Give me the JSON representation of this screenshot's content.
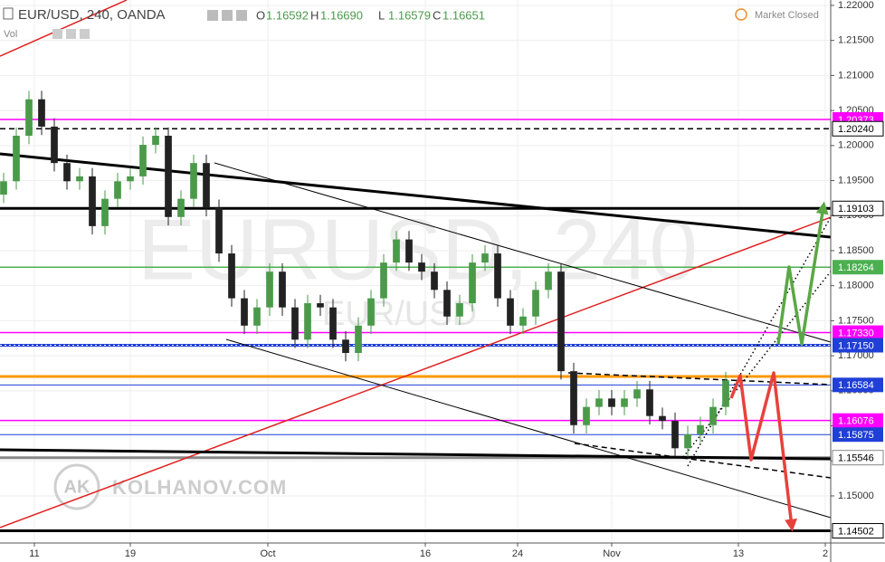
{
  "header": {
    "symbol": "EUR/USD, 240, OANDA",
    "indicator": "Vol",
    "status": "Market Closed",
    "ohlc": [
      {
        "label": "O",
        "value": "1.16592"
      },
      {
        "label": "H",
        "value": "1.16690"
      },
      {
        "label": "L",
        "value": "1.16579"
      },
      {
        "label": "C",
        "value": "1.16651"
      }
    ]
  },
  "watermark": {
    "main": "EURUSD, 240",
    "sub": "EUR/USD",
    "brand": "KOLHANOV.COM",
    "logo": "AK"
  },
  "chart_data": {
    "type": "candlestick",
    "up_color": "#4a9a4a",
    "down_color": "#222222",
    "grid": true,
    "xlim": [
      0,
      229.5
    ],
    "ylim": [
      1.14328,
      1.22077
    ],
    "xticks": [
      {
        "value": 9.5,
        "label": "11"
      },
      {
        "value": 36,
        "label": "19"
      },
      {
        "value": 74,
        "label": "Oct"
      },
      {
        "value": 117.5,
        "label": "16"
      },
      {
        "value": 143,
        "label": "24"
      },
      {
        "value": 169,
        "label": "Nov"
      },
      {
        "value": 204,
        "label": "13"
      },
      {
        "value": 228,
        "label": "2"
      }
    ],
    "yticks": [
      {
        "value": 1.22,
        "label": "1.22000"
      },
      {
        "value": 1.215,
        "label": "1.21500"
      },
      {
        "value": 1.21,
        "label": "1.21000"
      },
      {
        "value": 1.205,
        "label": "1.20500"
      },
      {
        "value": 1.2,
        "label": "1.20000"
      },
      {
        "value": 1.195,
        "label": "1.19500"
      },
      {
        "value": 1.19,
        "label": "1.19000"
      },
      {
        "value": 1.185,
        "label": "1.18500"
      },
      {
        "value": 1.18,
        "label": "1.18000"
      },
      {
        "value": 1.175,
        "label": "1.17500"
      },
      {
        "value": 1.17,
        "label": "1.17000"
      },
      {
        "value": 1.165,
        "label": "1.16500"
      },
      {
        "value": 1.16,
        "label": "1.16000"
      },
      {
        "value": 1.155,
        "label": "1.15500"
      },
      {
        "value": 1.15,
        "label": "1.15000"
      },
      {
        "value": 1.145,
        "label": "1.14500"
      }
    ],
    "candles": {
      "x": [
        1,
        4.5,
        8,
        11.5,
        15,
        18.5,
        22,
        25.5,
        29,
        32.5,
        36,
        39.5,
        43,
        46.5,
        50,
        53.5,
        57,
        60.5,
        64,
        67.5,
        71,
        74.5,
        78,
        81.5,
        85,
        88.5,
        92,
        95.5,
        99,
        102.5,
        106,
        109.5,
        113,
        116.5,
        120,
        123.5,
        127,
        130.5,
        134,
        137.5,
        141,
        144.5,
        148,
        151.5,
        155,
        158.5,
        162,
        165.5,
        169,
        172.5,
        176,
        179.5,
        183,
        186.5,
        190,
        193.5,
        197,
        200.5
      ],
      "open": [
        1.193,
        1.1949,
        1.2014,
        1.2066,
        1.2027,
        1.1975,
        1.1949,
        1.1956,
        1.1885,
        1.1924,
        1.1949,
        1.1956,
        1.2001,
        1.2014,
        1.1898,
        1.1924,
        1.1975,
        1.1911,
        1.1846,
        1.1782,
        1.1743,
        1.1769,
        1.182,
        1.1769,
        1.1723,
        1.1775,
        1.1769,
        1.1723,
        1.1704,
        1.1743,
        1.1782,
        1.1833,
        1.1866,
        1.1833,
        1.182,
        1.1794,
        1.1756,
        1.1775,
        1.1833,
        1.1846,
        1.1782,
        1.1743,
        1.1756,
        1.1794,
        1.182,
        1.1678,
        1.1601,
        1.1627,
        1.1639,
        1.1627,
        1.1639,
        1.1652,
        1.1614,
        1.1607,
        1.1568,
        1.1588,
        1.1601,
        1.1627
      ],
      "high": [
        1.1961,
        1.2026,
        1.2078,
        1.2078,
        1.2039,
        1.1987,
        1.1968,
        1.1968,
        1.1936,
        1.1961,
        1.1968,
        1.2013,
        1.2026,
        1.2026,
        1.1936,
        1.1987,
        1.1987,
        1.1923,
        1.1858,
        1.1794,
        1.1781,
        1.1832,
        1.1832,
        1.1781,
        1.1787,
        1.1787,
        1.1781,
        1.1735,
        1.1755,
        1.1794,
        1.1845,
        1.1878,
        1.1878,
        1.1845,
        1.1832,
        1.1806,
        1.1787,
        1.1845,
        1.1858,
        1.1858,
        1.1794,
        1.1768,
        1.1806,
        1.1832,
        1.1832,
        1.169,
        1.1639,
        1.1651,
        1.1651,
        1.1651,
        1.1664,
        1.1664,
        1.1626,
        1.1619,
        1.16,
        1.1613,
        1.1639,
        1.1677
      ],
      "low": [
        1.1918,
        1.1937,
        1.2002,
        1.2015,
        1.1963,
        1.1937,
        1.1937,
        1.1873,
        1.1873,
        1.1912,
        1.1937,
        1.1944,
        1.1989,
        1.1886,
        1.1886,
        1.1912,
        1.1899,
        1.1834,
        1.177,
        1.1731,
        1.1731,
        1.1757,
        1.1757,
        1.1711,
        1.1711,
        1.1757,
        1.1711,
        1.1692,
        1.1692,
        1.1731,
        1.177,
        1.1821,
        1.1821,
        1.1808,
        1.1782,
        1.1744,
        1.1744,
        1.1763,
        1.1821,
        1.177,
        1.1731,
        1.1731,
        1.1744,
        1.1782,
        1.1666,
        1.1589,
        1.1589,
        1.1615,
        1.1615,
        1.1615,
        1.1627,
        1.1602,
        1.1595,
        1.1556,
        1.1556,
        1.1576,
        1.1589,
        1.1615
      ],
      "close": [
        1.1949,
        1.2014,
        1.2066,
        1.2027,
        1.1975,
        1.1949,
        1.1956,
        1.1885,
        1.1924,
        1.1949,
        1.1956,
        1.2001,
        1.2014,
        1.1898,
        1.1924,
        1.1975,
        1.1911,
        1.1846,
        1.1782,
        1.1743,
        1.1769,
        1.182,
        1.1769,
        1.1723,
        1.1775,
        1.1769,
        1.1723,
        1.1704,
        1.1743,
        1.1782,
        1.1833,
        1.1866,
        1.1833,
        1.182,
        1.1794,
        1.1756,
        1.1775,
        1.1833,
        1.1846,
        1.1782,
        1.1743,
        1.1756,
        1.1794,
        1.182,
        1.1678,
        1.1601,
        1.1627,
        1.1639,
        1.1627,
        1.1639,
        1.1652,
        1.1614,
        1.1607,
        1.1568,
        1.1588,
        1.1601,
        1.1627,
        1.1665
      ]
    },
    "levels": [
      {
        "value": 1.20373,
        "label": "1.20373",
        "color": "#ff00ff",
        "style": "solid"
      },
      {
        "value": 1.2024,
        "label": "1.20240",
        "color": "#000000",
        "style": "dashed"
      },
      {
        "value": 1.19103,
        "label": "1.19103",
        "color": "#000000",
        "style": "thick"
      },
      {
        "value": 1.18264,
        "label": "1.18264",
        "color": "#4caf50",
        "style": "solid"
      },
      {
        "value": 1.1733,
        "label": "1.17330",
        "color": "#ff00ff",
        "style": "solid"
      },
      {
        "value": 1.1715,
        "label": "1.17150",
        "color": "#1f3fd6",
        "style": "thick"
      },
      {
        "value": 1.16705,
        "color": "#ff9800",
        "style": "thick"
      },
      {
        "value": 1.16584,
        "label": "1.16584",
        "color": "#1f3fd6",
        "style": "thin"
      },
      {
        "value": 1.16076,
        "label": "1.16076",
        "color": "#ff00ff",
        "style": "solid"
      },
      {
        "value": 1.15875,
        "label": "1.15875",
        "color": "#1f3fd6",
        "style": "thin"
      },
      {
        "value": 1.15546,
        "label": "1.15546",
        "color": "#888888",
        "style": "thick"
      },
      {
        "value": 1.14502,
        "label": "1.14502",
        "color": "#000000",
        "style": "thick"
      }
    ],
    "trendlines": [
      {
        "x": [
          0,
          229.5
        ],
        "y": [
          1.14548,
          1.18977
        ],
        "color": "#e02020",
        "style": "solid"
      },
      {
        "x": [
          0,
          35
        ],
        "y": [
          1.21276,
          1.22077
        ],
        "color": "#e02020",
        "style": "solid"
      },
      {
        "x": [
          0,
          229.5
        ],
        "y": [
          1.19881,
          1.18693
        ],
        "color": "#000000",
        "style": "thick"
      },
      {
        "x": [
          59.25,
          229.5
        ],
        "y": [
          1.19752,
          1.17195
        ],
        "color": "#000000",
        "style": "thin"
      },
      {
        "x": [
          62.5,
          229.5
        ],
        "y": [
          1.17234,
          1.1469
        ],
        "color": "#000000",
        "style": "thin"
      },
      {
        "x": [
          0,
          229.5
        ],
        "y": [
          1.15658,
          1.15529
        ],
        "color": "#000000",
        "style": "thick"
      },
      {
        "x": [
          157,
          229.5
        ],
        "y": [
          1.16756,
          1.16588
        ],
        "color": "#000000",
        "style": "dashed"
      },
      {
        "x": [
          158.75,
          229.5
        ],
        "y": [
          1.15749,
          1.15258
        ],
        "color": "#000000",
        "style": "dashed"
      },
      {
        "x": [
          190,
          229.5
        ],
        "y": [
          1.15426,
          1.18977
        ],
        "color": "#000000",
        "style": "dotted"
      },
      {
        "x": [
          188.75,
          229.5
        ],
        "y": [
          1.15555,
          1.18203
        ],
        "color": "#000000",
        "style": "dotted"
      }
    ],
    "forecasts": [
      {
        "x": [
          215,
          218,
          221.5,
          227.5
        ],
        "y": [
          1.17169,
          1.18267,
          1.17169,
          1.19132
        ],
        "color": "#5aa845"
      },
      {
        "x": [
          202,
          204.5,
          207.5,
          213.75,
          218.75
        ],
        "y": [
          1.16394,
          1.16717,
          1.15516,
          1.16756,
          1.1456
        ],
        "color": "#e8413c"
      }
    ]
  }
}
